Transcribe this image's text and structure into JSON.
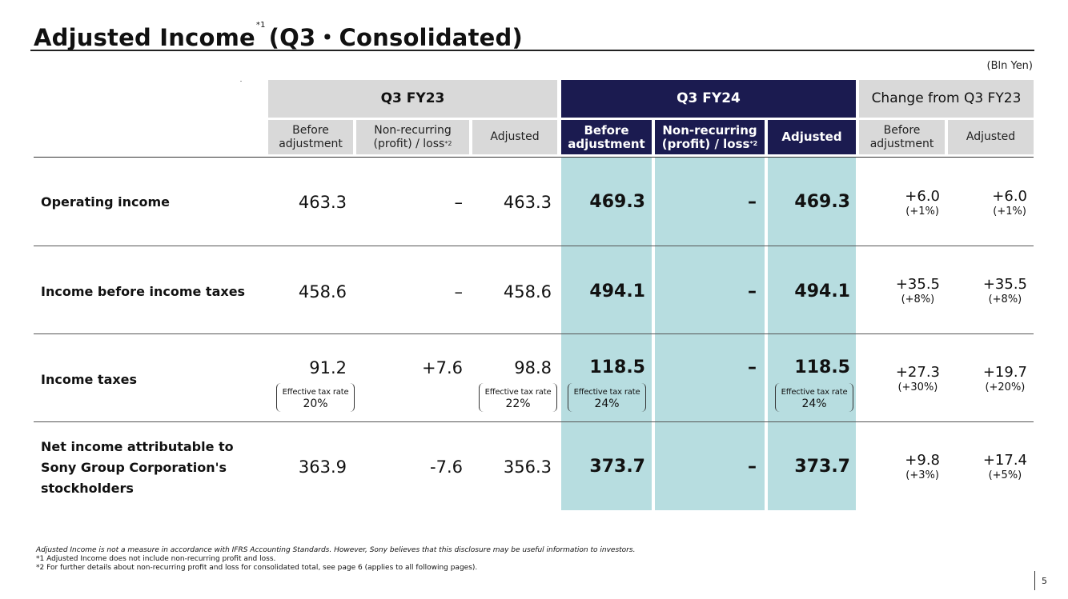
{
  "page": {
    "title": "Adjusted Income",
    "title_note": "*1",
    "title_suffix": "(Q3・Consolidated)",
    "unit": "(Bln Yen)",
    "page_number": "5"
  },
  "header": {
    "group_fy23": "Q3 FY23",
    "group_fy24": "Q3 FY24",
    "group_change": "Change from Q3 FY23",
    "before_line1": "Before",
    "before_line2": "adjustment",
    "nonrec_line1": "Non-recurring",
    "nonrec_line2": "(profit) / loss",
    "nonrec_note": "*2",
    "adjusted": "Adjusted"
  },
  "rows": [
    {
      "label": [
        "Operating income"
      ],
      "fy23_before": "463.3",
      "fy23_nonrec": "–",
      "fy23_adjusted": "463.3",
      "fy24_before": "469.3",
      "fy24_nonrec": "–",
      "fy24_adjusted": "469.3",
      "chg_before": "+6.0",
      "chg_before_pct": "(+1%)",
      "chg_adjusted": "+6.0",
      "chg_adjusted_pct": "(+1%)"
    },
    {
      "label": [
        "Income before income taxes"
      ],
      "fy23_before": "458.6",
      "fy23_nonrec": "–",
      "fy23_adjusted": "458.6",
      "fy24_before": "494.1",
      "fy24_nonrec": "–",
      "fy24_adjusted": "494.1",
      "chg_before": "+35.5",
      "chg_before_pct": "(+8%)",
      "chg_adjusted": "+35.5",
      "chg_adjusted_pct": "(+8%)"
    },
    {
      "label": [
        "Income taxes"
      ],
      "fy23_before": "91.2",
      "fy23_nonrec": "+7.6",
      "fy23_adjusted": "98.8",
      "fy24_before": "118.5",
      "fy24_nonrec": "–",
      "fy24_adjusted": "118.5",
      "chg_before": "+27.3",
      "chg_before_pct": "(+30%)",
      "chg_adjusted": "+19.7",
      "chg_adjusted_pct": "(+20%)",
      "etr_label": "Effective tax rate",
      "etr_fy23_before": "20%",
      "etr_fy23_adjusted": "22%",
      "etr_fy24_before": "24%",
      "etr_fy24_adjusted": "24%"
    },
    {
      "label": [
        "Net income attributable to",
        "Sony Group Corporation's",
        "stockholders"
      ],
      "fy23_before": "363.9",
      "fy23_nonrec": "-7.6",
      "fy23_adjusted": "356.3",
      "fy24_before": "373.7",
      "fy24_nonrec": "–",
      "fy24_adjusted": "373.7",
      "chg_before": "+9.8",
      "chg_before_pct": "(+3%)",
      "chg_adjusted": "+17.4",
      "chg_adjusted_pct": "(+5%)"
    }
  ],
  "footnotes": [
    "Adjusted Income is not a measure in accordance with IFRS Accounting Standards. However, Sony believes that this disclosure may be useful information to investors.",
    "*1 Adjusted Income does not include non-recurring profit and loss.",
    "*2 For further details about non-recurring profit and loss for consolidated total, see page 6 (applies to all following pages)."
  ]
}
